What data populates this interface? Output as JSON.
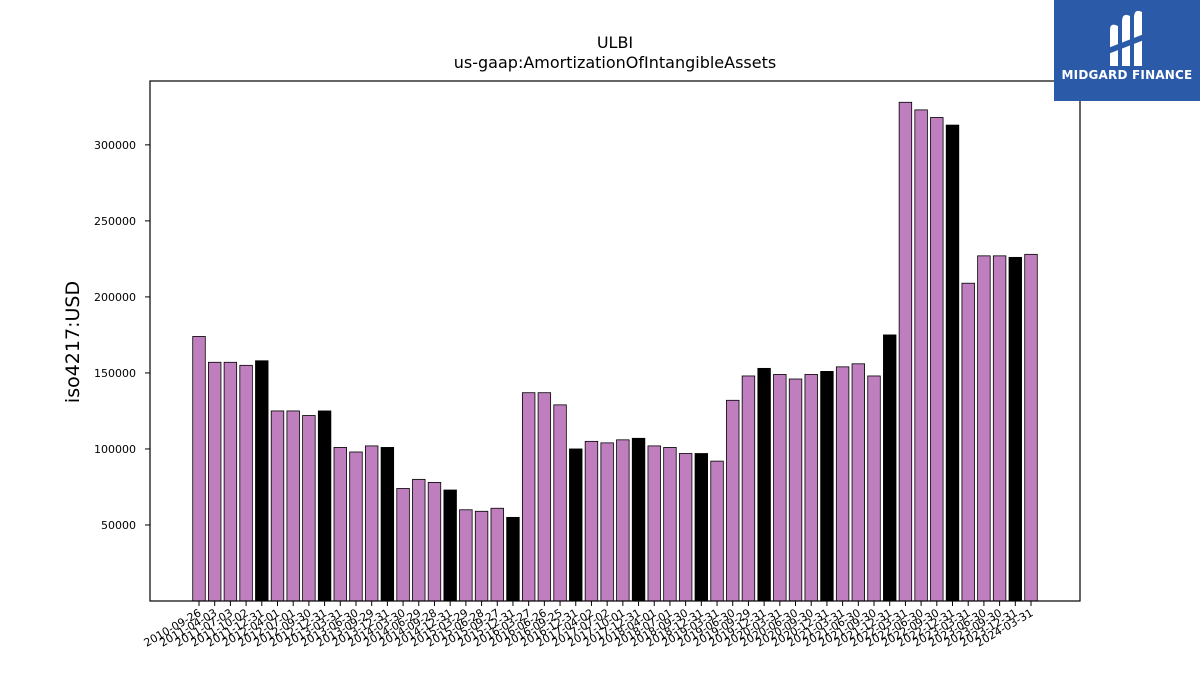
{
  "brand": {
    "name": "MIDGARD FINANCE",
    "color": "#2b5aa8"
  },
  "chart_data": {
    "type": "bar",
    "title": "ULBI",
    "subtitle": "us-gaap:AmortizationOfIntangibleAssets",
    "ylabel": "iso4217:USD",
    "xlabel": "",
    "ylim": [
      0,
      342000
    ],
    "yticks": [
      50000,
      100000,
      150000,
      200000,
      250000,
      300000
    ],
    "grid": false,
    "colors": {
      "default": "#bf7fbf",
      "highlight": "#000000"
    },
    "categories": [
      "2010-09-26",
      "2011-04-03",
      "2011-07-03",
      "2011-10-02",
      "2011-12-31",
      "2012-04-01",
      "2012-07-01",
      "2012-09-30",
      "2012-12-31",
      "2013-03-31",
      "2013-06-30",
      "2013-09-29",
      "2013-12-31",
      "2014-03-30",
      "2014-06-29",
      "2014-09-28",
      "2014-12-31",
      "2015-03-29",
      "2015-06-28",
      "2015-09-27",
      "2015-12-31",
      "2016-03-27",
      "2016-06-26",
      "2016-09-25",
      "2016-12-31",
      "2017-04-02",
      "2017-07-02",
      "2017-10-01",
      "2017-12-31",
      "2018-04-01",
      "2018-07-01",
      "2018-09-30",
      "2018-12-31",
      "2019-03-31",
      "2019-06-30",
      "2019-09-29",
      "2019-12-31",
      "2020-03-31",
      "2020-06-30",
      "2020-09-30",
      "2020-12-31",
      "2021-03-31",
      "2021-06-30",
      "2021-09-30",
      "2021-12-31",
      "2022-03-31",
      "2022-06-30",
      "2022-09-30",
      "2022-12-31",
      "2023-03-31",
      "2023-06-30",
      "2023-09-30",
      "2023-12-31",
      "2024-03-31"
    ],
    "values": [
      174000,
      157000,
      157000,
      155000,
      158000,
      125000,
      125000,
      122000,
      125000,
      101000,
      98000,
      102000,
      101000,
      74000,
      80000,
      78000,
      73000,
      60000,
      59000,
      61000,
      55000,
      137000,
      137000,
      129000,
      100000,
      105000,
      104000,
      106000,
      107000,
      102000,
      101000,
      97000,
      97000,
      92000,
      132000,
      148000,
      153000,
      149000,
      146000,
      149000,
      151000,
      154000,
      156000,
      148000,
      175000,
      328000,
      323000,
      318000,
      313000,
      209000,
      227000,
      227000,
      226000,
      228000
    ],
    "highlighted": [
      false,
      false,
      false,
      false,
      true,
      false,
      false,
      false,
      true,
      false,
      false,
      false,
      true,
      false,
      false,
      false,
      true,
      false,
      false,
      false,
      true,
      false,
      false,
      false,
      true,
      false,
      false,
      false,
      true,
      false,
      false,
      false,
      true,
      false,
      false,
      false,
      true,
      false,
      false,
      false,
      true,
      false,
      false,
      false,
      true,
      false,
      false,
      false,
      true,
      false,
      false,
      false,
      true,
      false
    ]
  }
}
